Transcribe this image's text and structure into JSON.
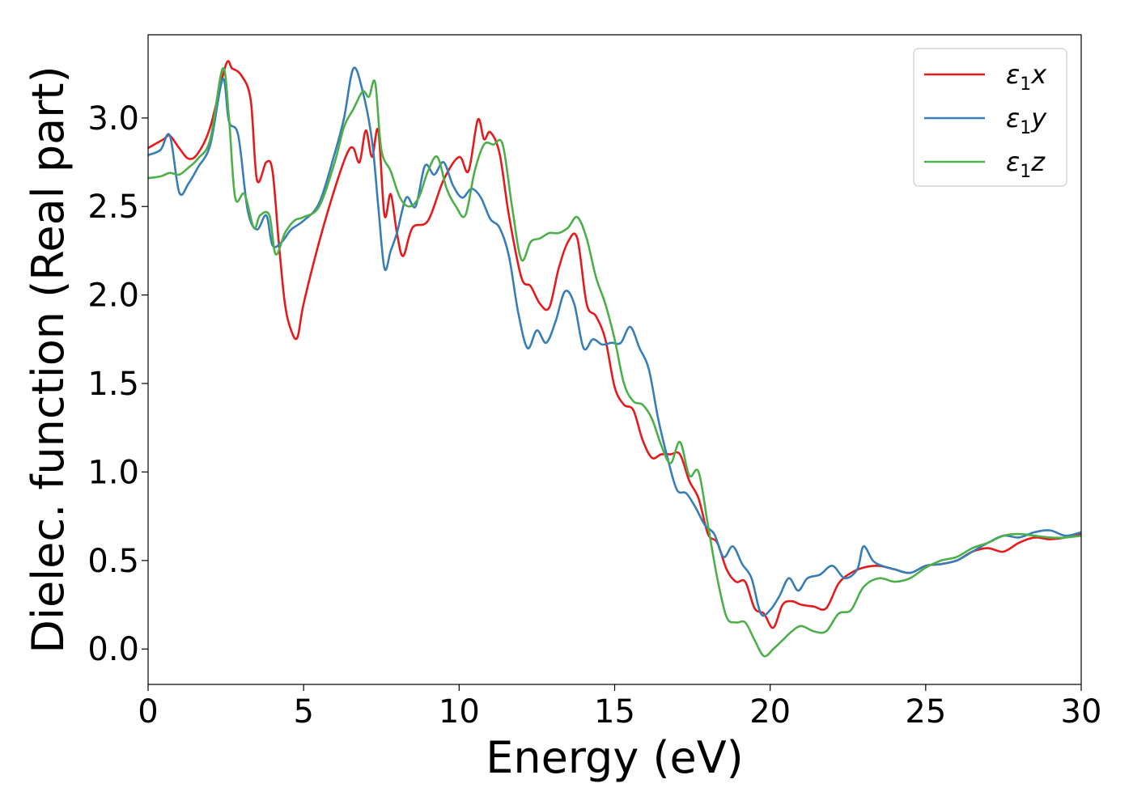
{
  "chart_data": {
    "type": "line",
    "xlabel": "Energy (eV)",
    "ylabel": "Dielec. function (Real part)",
    "xlim": [
      0,
      30
    ],
    "ylim": [
      -0.2,
      3.47
    ],
    "xticks": [
      0,
      5,
      10,
      15,
      20,
      25,
      30
    ],
    "yticks": [
      0.0,
      0.5,
      1.0,
      1.5,
      2.0,
      2.5,
      3.0
    ],
    "xtick_labels": [
      "0",
      "5",
      "10",
      "15",
      "20",
      "25",
      "30"
    ],
    "ytick_labels": [
      "0.0",
      "0.5",
      "1.0",
      "1.5",
      "2.0",
      "2.5",
      "3.0"
    ],
    "grid": false,
    "legend_position": "top-right",
    "series": [
      {
        "name": "ε1x",
        "label_main": "ε",
        "label_sub": "1",
        "label_suffix": "x",
        "color": "#e41a1c",
        "x": [
          0,
          0.5,
          0.7,
          1.0,
          1.3,
          1.6,
          2.0,
          2.5,
          2.7,
          3.0,
          3.3,
          3.5,
          3.8,
          4.0,
          4.2,
          4.4,
          4.6,
          4.8,
          5.0,
          5.5,
          6.0,
          6.4,
          6.6,
          6.8,
          7.0,
          7.2,
          7.4,
          7.6,
          7.8,
          8.0,
          8.2,
          8.5,
          9.0,
          9.5,
          10.0,
          10.3,
          10.6,
          10.8,
          11.0,
          11.3,
          11.6,
          12.0,
          12.3,
          12.6,
          12.9,
          13.2,
          13.5,
          13.8,
          14.1,
          14.4,
          14.7,
          15.0,
          15.3,
          15.6,
          15.9,
          16.2,
          16.5,
          16.8,
          17.1,
          17.4,
          17.7,
          18.0,
          18.3,
          18.6,
          18.9,
          19.2,
          19.5,
          19.8,
          20.1,
          20.4,
          20.7,
          21.0,
          21.4,
          21.8,
          22.2,
          22.6,
          23.0,
          23.5,
          24.0,
          24.5,
          25.0,
          25.5,
          26.0,
          26.5,
          27.0,
          27.5,
          28.0,
          28.5,
          29.0,
          29.5,
          30.0
        ],
        "y": [
          2.83,
          2.88,
          2.9,
          2.83,
          2.77,
          2.8,
          2.95,
          3.3,
          3.28,
          3.24,
          3.1,
          2.65,
          2.75,
          2.7,
          2.3,
          1.95,
          1.8,
          1.76,
          1.95,
          2.3,
          2.6,
          2.8,
          2.83,
          2.75,
          2.93,
          2.78,
          2.93,
          2.45,
          2.57,
          2.35,
          2.22,
          2.38,
          2.42,
          2.65,
          2.78,
          2.7,
          2.99,
          2.88,
          2.92,
          2.8,
          2.45,
          2.1,
          2.05,
          1.95,
          1.93,
          2.15,
          2.3,
          2.32,
          1.95,
          1.88,
          1.75,
          1.48,
          1.38,
          1.35,
          1.18,
          1.08,
          1.1,
          1.1,
          1.1,
          0.95,
          0.85,
          0.65,
          0.6,
          0.45,
          0.38,
          0.38,
          0.23,
          0.2,
          0.12,
          0.25,
          0.27,
          0.25,
          0.24,
          0.23,
          0.37,
          0.43,
          0.46,
          0.47,
          0.45,
          0.43,
          0.47,
          0.48,
          0.5,
          0.55,
          0.57,
          0.55,
          0.6,
          0.63,
          0.62,
          0.63,
          0.65
        ]
      },
      {
        "name": "ε1y",
        "label_main": "ε",
        "label_sub": "1",
        "label_suffix": "y",
        "color": "#377eb8",
        "x": [
          0,
          0.4,
          0.7,
          1.0,
          1.3,
          1.6,
          2.0,
          2.4,
          2.6,
          2.9,
          3.2,
          3.5,
          3.8,
          4.0,
          4.3,
          4.6,
          5.0,
          5.5,
          6.0,
          6.3,
          6.6,
          6.9,
          7.2,
          7.4,
          7.6,
          7.8,
          8.0,
          8.3,
          8.6,
          8.9,
          9.2,
          9.5,
          9.8,
          10.1,
          10.4,
          10.7,
          11.0,
          11.3,
          11.6,
          11.9,
          12.2,
          12.5,
          12.8,
          13.1,
          13.4,
          13.7,
          14.0,
          14.3,
          14.6,
          14.9,
          15.2,
          15.5,
          15.8,
          16.1,
          16.4,
          16.7,
          17.0,
          17.3,
          17.6,
          17.9,
          18.2,
          18.5,
          18.8,
          19.1,
          19.4,
          19.7,
          20.0,
          20.3,
          20.6,
          20.9,
          21.2,
          21.6,
          22.0,
          22.4,
          22.8,
          23.0,
          23.3,
          23.6,
          24.0,
          24.5,
          25.0,
          25.5,
          26.0,
          26.5,
          27.0,
          27.5,
          28.0,
          28.5,
          29.0,
          29.5,
          30.0
        ],
        "y": [
          2.79,
          2.82,
          2.9,
          2.58,
          2.63,
          2.72,
          2.85,
          3.22,
          2.98,
          2.9,
          2.48,
          2.37,
          2.45,
          2.28,
          2.3,
          2.37,
          2.42,
          2.52,
          2.8,
          3.0,
          3.28,
          3.15,
          2.87,
          2.5,
          2.15,
          2.25,
          2.35,
          2.55,
          2.5,
          2.73,
          2.68,
          2.75,
          2.62,
          2.55,
          2.6,
          2.55,
          2.43,
          2.38,
          2.22,
          1.9,
          1.7,
          1.8,
          1.73,
          1.85,
          2.02,
          1.95,
          1.7,
          1.75,
          1.72,
          1.73,
          1.73,
          1.82,
          1.7,
          1.58,
          1.3,
          1.08,
          0.9,
          0.88,
          0.8,
          0.7,
          0.65,
          0.52,
          0.58,
          0.48,
          0.4,
          0.2,
          0.22,
          0.3,
          0.4,
          0.33,
          0.4,
          0.42,
          0.47,
          0.4,
          0.45,
          0.58,
          0.5,
          0.47,
          0.45,
          0.43,
          0.47,
          0.48,
          0.5,
          0.55,
          0.6,
          0.64,
          0.63,
          0.66,
          0.67,
          0.64,
          0.66
        ]
      },
      {
        "name": "ε1z",
        "label_main": "ε",
        "label_sub": "1",
        "label_suffix": "z",
        "color": "#4daf4a",
        "x": [
          0,
          0.4,
          0.7,
          1.0,
          1.3,
          1.6,
          2.0,
          2.4,
          2.6,
          2.8,
          3.1,
          3.4,
          3.6,
          3.9,
          4.1,
          4.4,
          4.7,
          5.0,
          5.5,
          6.0,
          6.3,
          6.6,
          6.9,
          7.1,
          7.3,
          7.5,
          7.8,
          8.1,
          8.4,
          8.7,
          9.0,
          9.3,
          9.6,
          9.9,
          10.2,
          10.5,
          10.8,
          11.1,
          11.4,
          11.7,
          12.0,
          12.3,
          12.6,
          12.9,
          13.2,
          13.5,
          13.8,
          14.1,
          14.4,
          14.7,
          15.0,
          15.3,
          15.6,
          15.9,
          16.2,
          16.5,
          16.8,
          17.1,
          17.4,
          17.7,
          18.0,
          18.3,
          18.6,
          18.9,
          19.2,
          19.5,
          19.8,
          20.1,
          20.4,
          20.7,
          21.0,
          21.4,
          21.8,
          22.2,
          22.6,
          23.0,
          23.5,
          24.0,
          24.5,
          25.0,
          25.5,
          26.0,
          26.5,
          27.0,
          27.5,
          28.0,
          28.5,
          29.0,
          29.5,
          30.0
        ],
        "y": [
          2.66,
          2.67,
          2.69,
          2.68,
          2.72,
          2.77,
          2.88,
          3.28,
          3.0,
          2.55,
          2.57,
          2.38,
          2.45,
          2.45,
          2.23,
          2.35,
          2.42,
          2.44,
          2.5,
          2.75,
          2.95,
          3.05,
          3.15,
          3.12,
          3.2,
          2.82,
          2.7,
          2.55,
          2.5,
          2.55,
          2.7,
          2.78,
          2.6,
          2.5,
          2.45,
          2.7,
          2.85,
          2.85,
          2.85,
          2.5,
          2.2,
          2.3,
          2.32,
          2.35,
          2.35,
          2.38,
          2.44,
          2.32,
          2.1,
          1.95,
          1.75,
          1.5,
          1.4,
          1.38,
          1.3,
          1.15,
          1.05,
          1.17,
          0.98,
          1.0,
          0.7,
          0.4,
          0.18,
          0.15,
          0.15,
          0.05,
          -0.04,
          0.0,
          0.05,
          0.1,
          0.13,
          0.1,
          0.1,
          0.2,
          0.22,
          0.35,
          0.4,
          0.38,
          0.4,
          0.46,
          0.5,
          0.52,
          0.57,
          0.6,
          0.64,
          0.65,
          0.64,
          0.63,
          0.63,
          0.64
        ]
      }
    ]
  }
}
